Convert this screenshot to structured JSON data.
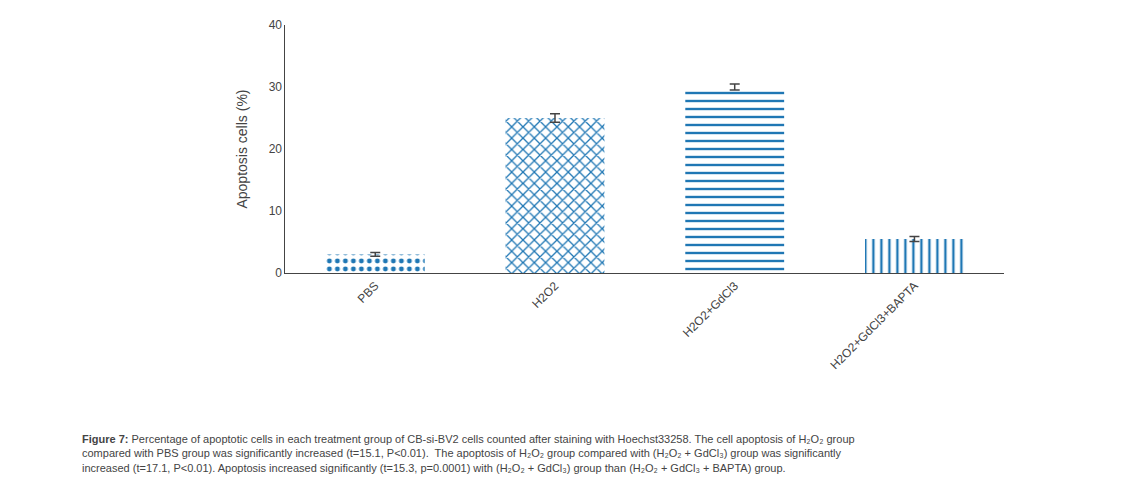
{
  "chart_data": {
    "type": "bar",
    "categories": [
      "PBS",
      "H2O2",
      "H2O2+GdCl3",
      "H2O2+GdCl3+BAPTA"
    ],
    "values": [
      3.0,
      25.0,
      30.0,
      5.5
    ],
    "errors": [
      0.3,
      0.7,
      0.5,
      0.4
    ],
    "ylabel": "Apoptosis cells (%)",
    "ylim": [
      0,
      40
    ],
    "yticks": [
      0,
      10,
      20,
      30,
      40
    ],
    "grid": false,
    "annotations": [
      "Figure 7:",
      " Percentage of apoptotic cells in each treatment group of CB-si-BV2 cells counted after staining with Hoechst33258. The cell apoptosis of H₂O₂ group\ncompared with PBS group was significantly increased (t=15.1, P<0.01).  The apoptosis of H₂O₂ group compared with (H₂O₂ + GdCl₃) group was significantly\nincreased (t=17.1, P<0.01). Apoptosis increased significantly (t=15.3, p=0.0001) with (H₂O₂ + GdCl₃) group than (H₂O₂ + GdCl₃ + BAPTA) group."
    ]
  }
}
